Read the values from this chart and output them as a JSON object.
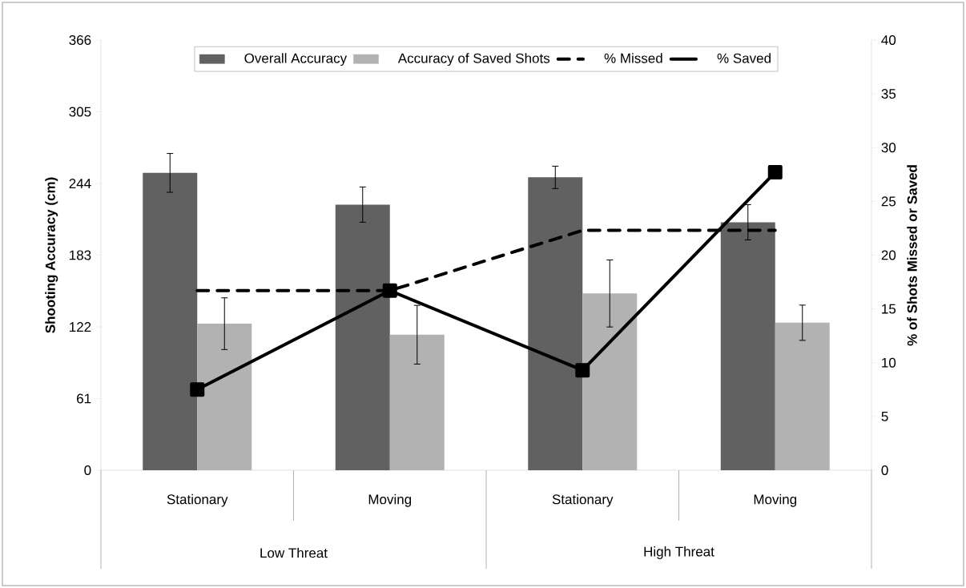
{
  "chart_data": {
    "type": "bar",
    "ylabel": "Shooting Accuracy (cm)",
    "y2label": "% of Shots Missed or Saved",
    "categories": [
      "Stationary",
      "Moving",
      "Stationary",
      "Moving"
    ],
    "annotations": [
      "Low Threat",
      "High Threat"
    ],
    "series": [
      {
        "name": "Overall Accuracy",
        "color": "#616161",
        "values": [
          253,
          226,
          249.2,
          211
        ],
        "errors": [
          16.5,
          15,
          9.5,
          15
        ]
      },
      {
        "name": "Accuracy of Saved Shots",
        "color": "#b2b2b2",
        "values": [
          124.7,
          115.3,
          150.4,
          125.5
        ],
        "errors": [
          22,
          25,
          28.5,
          15
        ]
      },
      {
        "name": "% Missed",
        "type": "line",
        "axis": "y2",
        "color": "#000000",
        "line_style": "dashed",
        "marker": "none",
        "values": [
          16.7,
          16.7,
          22.3,
          22.3
        ]
      },
      {
        "name": "% Saved",
        "type": "line",
        "axis": "y2",
        "color": "#000000",
        "line_style": "solid",
        "marker": "square",
        "values": [
          7.5,
          16.7,
          9.3,
          27.7
        ]
      }
    ],
    "ylim": [
      0,
      366
    ],
    "yticks": [
      0,
      61,
      122,
      183,
      244,
      305,
      366
    ],
    "y2lim": [
      0,
      40
    ],
    "y2ticks": [
      0,
      5,
      10,
      15,
      20,
      25,
      30,
      35,
      40
    ],
    "legend": "top"
  }
}
